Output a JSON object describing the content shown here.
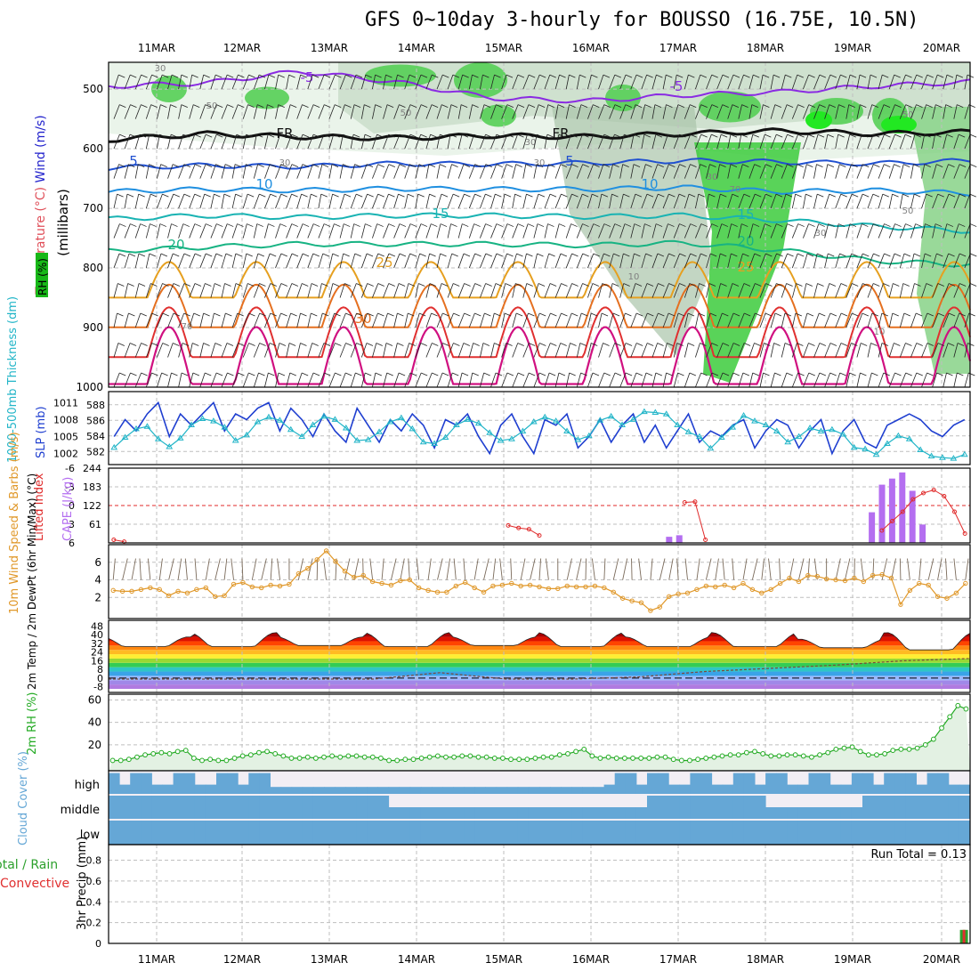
{
  "title": "GFS 0~10day 3-hourly for BOUSSO (16.75E, 10.5N)",
  "dates": [
    "11MAR",
    "12MAR",
    "13MAR",
    "14MAR",
    "15MAR",
    "16MAR",
    "17MAR",
    "18MAR",
    "19MAR",
    "20MAR"
  ],
  "chart_data": [
    {
      "type": "line",
      "name": "cross-section",
      "ylabel_parts": [
        "RH (%)",
        "Temperature (°C)",
        "Wind (m/s)",
        "(millibars)"
      ],
      "y_ticks": [
        500,
        600,
        700,
        800,
        900,
        1000
      ],
      "ylim": [
        1000,
        455
      ],
      "contour_labels": {
        "temperature": [
          "-5",
          "FR",
          "5",
          "10",
          "15",
          "20",
          "25",
          "30",
          "-5",
          "FR",
          "5",
          "10",
          "15",
          "20",
          "25"
        ],
        "rh": [
          "30",
          "50",
          "30",
          "30",
          "50",
          "30",
          "50",
          "70",
          "30",
          "10",
          "70",
          "50",
          "30",
          "10"
        ]
      },
      "isotherms": [
        {
          "label": "-5",
          "color": "#8a2be2",
          "level": [
            "495",
            "490",
            "470",
            "488",
            "515",
            "520",
            "510",
            "505",
            "495",
            "488"
          ]
        },
        {
          "label": "FR",
          "color": "#111111",
          "level": [
            "585",
            "575",
            "580",
            "582",
            "578",
            "580",
            "575",
            "570",
            "575",
            "572"
          ]
        },
        {
          "label": "5",
          "color": "#2050d0",
          "level": [
            "632",
            "628",
            "630",
            "625",
            "626",
            "624",
            "620",
            "622",
            "625",
            "620"
          ]
        },
        {
          "label": "10",
          "color": "#1f8fe0",
          "level": [
            "672",
            "668",
            "670",
            "667",
            "668",
            "668",
            "665",
            "672",
            "670",
            "675"
          ]
        },
        {
          "label": "15",
          "color": "#19b3b3",
          "level": [
            "718",
            "712",
            "715",
            "712",
            "712",
            "714",
            "712",
            "720",
            "730",
            "738"
          ]
        },
        {
          "label": "20",
          "color": "#17b383",
          "level": [
            "772",
            "765",
            "760",
            "760",
            "760",
            "762",
            "758",
            "770",
            "788",
            "795"
          ]
        }
      ]
    },
    {
      "type": "line",
      "name": "thickness-slp",
      "left_label": "1000-500mb Thickness (dm)",
      "right_label": "SLP (mb)",
      "left_ticks": [
        582,
        584,
        586,
        588
      ],
      "right_ticks": [
        1002,
        1005,
        1008,
        1011
      ],
      "series": [
        {
          "name": "SLP (mb)",
          "color": "#1f3fd0",
          "values": [
            1005,
            1008,
            1006,
            1009,
            1011,
            1005,
            1009,
            1007,
            1009,
            1011,
            1006,
            1009,
            1008,
            1010,
            1011,
            1006,
            1010,
            1008,
            1005,
            1009,
            1006,
            1004,
            1010,
            1007,
            1004,
            1008,
            1006,
            1009,
            1007,
            1003,
            1008,
            1007,
            1009,
            1005,
            1002,
            1007,
            1009,
            1005,
            1002,
            1008,
            1007,
            1009,
            1003,
            1005,
            1008,
            1004,
            1007,
            1009,
            1004,
            1007,
            1003,
            1006,
            1009,
            1004,
            1006,
            1005,
            1007,
            1008,
            1003,
            1006,
            1008,
            1007,
            1003,
            1006,
            1008,
            1002,
            1006,
            1008,
            1004,
            1003,
            1007,
            1008,
            1009,
            1008,
            1006,
            1005,
            1007,
            1008
          ]
        },
        {
          "name": "1000-500mb Thickness (dm)",
          "color": "#22b5c8",
          "values": [
            582.5,
            583.8,
            584.9,
            585.2,
            583.6,
            582.6,
            583.7,
            585.4,
            586.2,
            585.9,
            585.1,
            583.4,
            584.1,
            585.8,
            586.4,
            586.0,
            584.8,
            583.9,
            585.4,
            586.5,
            586.1,
            585.0,
            583.4,
            583.5,
            584.5,
            585.8,
            586.3,
            584.9,
            583.2,
            583.0,
            583.8,
            585.4,
            586.1,
            585.6,
            584.4,
            583.4,
            583.6,
            584.6,
            585.8,
            586.4,
            585.9,
            584.6,
            583.5,
            584.0,
            586.0,
            586.5,
            585.4,
            586.1,
            587.1,
            587.0,
            586.8,
            585.4,
            584.5,
            583.9,
            582.4,
            583.8,
            585.1,
            586.6,
            585.9,
            585.4,
            584.6,
            583.2,
            583.9,
            585.0,
            584.6,
            584.8,
            584.2,
            582.5,
            582.3,
            581.6,
            583.0,
            584.0,
            583.6,
            582.2,
            581.4,
            581.2,
            581.1,
            581.6
          ]
        }
      ]
    },
    {
      "type": "bar",
      "name": "cape-li",
      "left_label": "Lifted Index",
      "right_label": "CAPE (J/kg)",
      "left_ticks": [
        "-6",
        "-3",
        "0",
        "3",
        "6"
      ],
      "right_ticks": [
        "61",
        "122",
        "183",
        "244"
      ],
      "cape_bars": [
        {
          "i": 55,
          "value": 20
        },
        {
          "i": 56,
          "value": 25
        },
        {
          "i": 75,
          "value": 100
        },
        {
          "i": 76,
          "value": 190
        },
        {
          "i": 77,
          "value": 210
        },
        {
          "i": 78,
          "value": 230
        },
        {
          "i": 79,
          "value": 170
        },
        {
          "i": 80,
          "value": 60
        }
      ],
      "li_series": [
        5.5,
        5.8,
        null,
        null,
        null,
        null,
        null,
        null,
        null,
        null,
        null,
        null,
        null,
        null,
        null,
        null,
        null,
        null,
        null,
        null,
        null,
        null,
        null,
        null,
        null,
        null,
        null,
        null,
        null,
        null,
        null,
        null,
        null,
        null,
        null,
        null,
        null,
        null,
        3.2,
        3.6,
        3.8,
        4.8,
        null,
        null,
        null,
        null,
        null,
        null,
        null,
        null,
        null,
        null,
        null,
        null,
        null,
        -0.5,
        -0.6,
        5.5,
        null,
        null,
        null,
        null,
        null,
        null,
        null,
        null,
        null,
        null,
        null,
        null,
        null,
        null,
        null,
        null,
        4.0,
        2.5,
        1.0,
        -1.0,
        -2.0,
        -2.5,
        -1.5,
        1.0,
        4.5
      ],
      "li_zero_line": 0
    },
    {
      "type": "line",
      "name": "wind10m",
      "left_label": "10m Wind Speed & Barbs (m/s)",
      "y_ticks": [
        2,
        4,
        6
      ],
      "series": [
        {
          "name": "10m Wind Speed",
          "color": "#e0982a",
          "values": [
            2.8,
            2.7,
            2.7,
            2.9,
            3.1,
            2.9,
            2.2,
            2.7,
            2.5,
            2.9,
            3.1,
            2.1,
            2.2,
            3.5,
            3.7,
            3.2,
            3.1,
            3.4,
            3.3,
            3.5,
            4.7,
            5.3,
            6.3,
            7.3,
            6.1,
            5.0,
            4.3,
            4.5,
            3.8,
            3.6,
            3.4,
            3.9,
            4.0,
            3.1,
            2.8,
            2.6,
            2.6,
            3.3,
            3.7,
            3.1,
            2.6,
            3.3,
            3.4,
            3.6,
            3.3,
            3.4,
            3.2,
            3.0,
            3.0,
            3.3,
            3.2,
            3.2,
            3.3,
            3.1,
            2.6,
            1.9,
            1.6,
            1.4,
            0.5,
            0.9,
            2.1,
            2.4,
            2.5,
            2.9,
            3.3,
            3.2,
            3.4,
            3.1,
            3.6,
            2.9,
            2.5,
            2.9,
            3.6,
            4.2,
            3.8,
            4.5,
            4.4,
            4.1,
            4.0,
            3.9,
            4.2,
            3.8,
            4.5,
            4.6,
            4.2,
            1.2,
            2.8,
            3.6,
            3.4,
            2.1,
            1.9,
            2.5,
            3.6
          ]
        }
      ]
    },
    {
      "type": "area",
      "name": "temp2m",
      "left_label": "2m Temp / 2m DewPt (6hr Min/Max) (°C)",
      "y_ticks": [
        "-8",
        "0",
        "8",
        "16",
        "24",
        "32",
        "40",
        "48"
      ],
      "band_colors": [
        "#b07be0",
        "#a088e8",
        "#9ab8ff",
        "#3aa3e8",
        "#2fc6c6",
        "#33cc55",
        "#99d833",
        "#ffee33",
        "#ffbb22",
        "#ff8811",
        "#ff4400",
        "#dd1100",
        "#aa0000",
        "#5a3a30"
      ],
      "temp_max": [
        38,
        42,
        38,
        42,
        38,
        42,
        38,
        42,
        36,
        42
      ],
      "temp_min": [
        29,
        29,
        30,
        29,
        30,
        29,
        29,
        29,
        28,
        26
      ],
      "dewpt": [
        -1,
        -1,
        -1,
        -1,
        -1,
        5,
        -1,
        -1,
        1,
        6,
        9,
        12,
        16,
        18
      ]
    },
    {
      "type": "area",
      "name": "rh2m",
      "left_label": "2m RH (%)",
      "y_ticks": [
        20,
        40,
        60
      ],
      "series": [
        {
          "name": "2m RH",
          "color": "#22aa22",
          "values": [
            6,
            6,
            7,
            9,
            11,
            12,
            13,
            12,
            14,
            15,
            8,
            6,
            7,
            6,
            6,
            8,
            10,
            11,
            13,
            14,
            12,
            10,
            8,
            8,
            9,
            8,
            9,
            10,
            9,
            10,
            10,
            9,
            9,
            8,
            6,
            6,
            7,
            7,
            8,
            9,
            10,
            9,
            9,
            10,
            10,
            9,
            9,
            8,
            8,
            7,
            7,
            7,
            8,
            9,
            9,
            11,
            12,
            14,
            16,
            10,
            8,
            9,
            8,
            8,
            8,
            8,
            8,
            9,
            9,
            7,
            6,
            6,
            7,
            8,
            9,
            10,
            11,
            11,
            13,
            14,
            12,
            10,
            10,
            11,
            11,
            10,
            9,
            11,
            13,
            16,
            17,
            18,
            14,
            11,
            11,
            12,
            15,
            16,
            16,
            17,
            20,
            25,
            35,
            45,
            55,
            52
          ]
        }
      ]
    },
    {
      "type": "bar",
      "name": "cloud",
      "left_label": "Cloud Cover (%)",
      "layers": [
        "high",
        "middle",
        "low"
      ]
    },
    {
      "type": "bar",
      "name": "precip",
      "left_label": "3hr Precip (mm)",
      "side_label_parts": [
        "Total / Rain",
        "Convective"
      ],
      "y_ticks": [
        "0",
        "0.2",
        "0.4",
        "0.6",
        "0.8"
      ],
      "run_total": "Run Total = 0.13",
      "bars": [
        {
          "i": 84,
          "value": 0.13
        }
      ]
    }
  ],
  "colors": {
    "grid": "#bfbfbf",
    "rh_label": "#18b818",
    "temp_label": "#e0505a",
    "wind_label": "#2222cc",
    "cape_bar": "#b46ef0",
    "li_line": "#e02a2a",
    "cloud": "#65a7d6",
    "precip_total": "#2ca02c",
    "precip_conv": "#e03030"
  }
}
